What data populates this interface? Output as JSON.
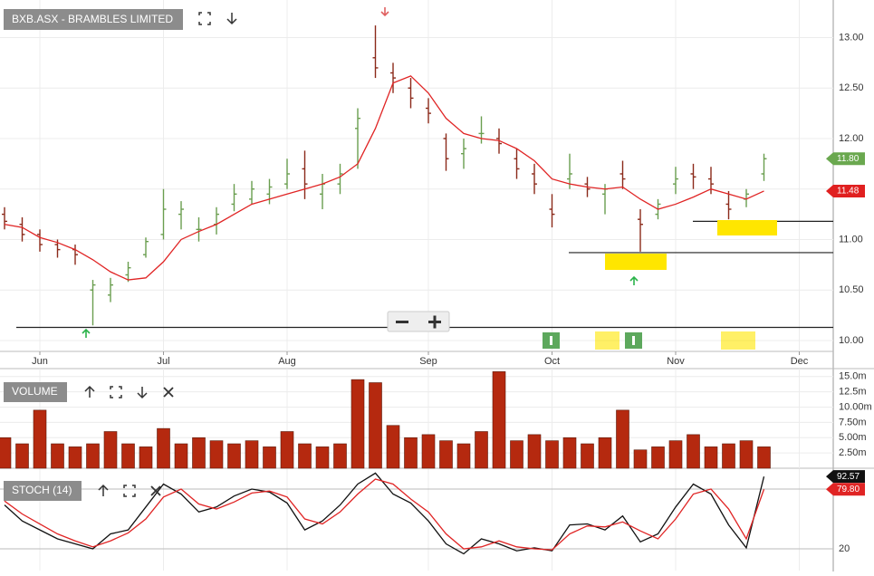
{
  "chart_data": [
    {
      "type": "ohlc",
      "title": "BXB.ASX - BRAMBLES LIMITED",
      "categories": [
        null,
        null,
        "Jun",
        null,
        null,
        null,
        null,
        null,
        null,
        "Jul",
        null,
        null,
        null,
        null,
        null,
        null,
        "Aug",
        null,
        null,
        null,
        null,
        null,
        null,
        null,
        "Sep",
        null,
        null,
        null,
        null,
        null,
        null,
        "Oct",
        null,
        null,
        null,
        null,
        null,
        null,
        "Nov",
        null,
        null,
        null,
        null,
        null,
        null,
        "Dec"
      ],
      "open": [
        11.25,
        11.15,
        11.05,
        10.95,
        10.9,
        10.5,
        10.45,
        10.65,
        10.85,
        11.05,
        11.25,
        11.1,
        11.15,
        11.35,
        11.4,
        11.45,
        11.55,
        11.7,
        11.45,
        11.55,
        12.1,
        12.8,
        12.65,
        12.5,
        12.3,
        12.0,
        11.85,
        12.05,
        12.0,
        11.8,
        11.65,
        11.3,
        11.6,
        11.55,
        11.45,
        11.65,
        11.2,
        11.25,
        11.55,
        11.65,
        11.6,
        11.35,
        11.4,
        11.65,
        null,
        null
      ],
      "high": [
        11.32,
        11.22,
        11.1,
        11.0,
        10.95,
        10.6,
        10.62,
        10.78,
        11.02,
        11.5,
        11.38,
        11.22,
        11.32,
        11.55,
        11.58,
        11.6,
        11.8,
        11.88,
        11.65,
        11.75,
        12.3,
        13.12,
        12.75,
        12.6,
        12.4,
        12.05,
        12.0,
        12.22,
        12.1,
        11.9,
        11.75,
        11.45,
        11.85,
        11.62,
        11.55,
        11.78,
        11.3,
        11.4,
        11.72,
        11.75,
        11.72,
        11.48,
        11.5,
        11.85,
        null,
        null
      ],
      "low": [
        11.1,
        10.98,
        10.88,
        10.82,
        10.75,
        10.15,
        10.38,
        10.58,
        10.82,
        11.0,
        11.1,
        10.98,
        11.05,
        11.28,
        11.35,
        11.35,
        11.5,
        11.4,
        11.3,
        11.45,
        11.7,
        12.6,
        12.45,
        12.3,
        12.15,
        11.68,
        11.7,
        11.95,
        11.85,
        11.6,
        11.45,
        11.12,
        11.5,
        11.42,
        11.25,
        11.5,
        10.88,
        11.2,
        11.45,
        11.5,
        11.45,
        11.2,
        11.32,
        11.58,
        null,
        null
      ],
      "close": [
        11.18,
        11.05,
        10.95,
        10.9,
        10.85,
        10.55,
        10.55,
        10.72,
        10.98,
        11.3,
        11.3,
        11.1,
        11.25,
        11.45,
        11.5,
        11.52,
        11.65,
        11.55,
        11.55,
        11.65,
        12.2,
        12.7,
        12.6,
        12.4,
        12.25,
        11.8,
        11.9,
        12.05,
        11.95,
        11.7,
        11.55,
        11.25,
        11.65,
        11.5,
        11.5,
        11.6,
        11.15,
        11.35,
        11.6,
        11.62,
        11.55,
        11.3,
        11.45,
        11.8,
        null,
        null
      ],
      "last_label": "11.80",
      "up_color": "#6a9e4f",
      "down_color": "#8b2a1a",
      "ma": {
        "color": "#e02424",
        "last_label": "11.48",
        "values": [
          11.15,
          11.12,
          11.02,
          10.97,
          10.9,
          10.8,
          10.68,
          10.6,
          10.62,
          10.78,
          11.0,
          11.08,
          11.15,
          11.25,
          11.35,
          11.4,
          11.45,
          11.5,
          11.55,
          11.62,
          11.75,
          12.1,
          12.55,
          12.62,
          12.45,
          12.2,
          12.05,
          12.0,
          11.98,
          11.9,
          11.78,
          11.6,
          11.55,
          11.52,
          11.5,
          11.52,
          11.4,
          11.3,
          11.35,
          11.42,
          11.5,
          11.45,
          11.4,
          11.48,
          null,
          null
        ]
      },
      "hlines": [
        10.13,
        10.87,
        11.18
      ],
      "ylim": [
        9.892,
        13.372
      ],
      "yticks": [
        {
          "value": 13,
          "label": "13.00"
        },
        {
          "value": 12.5,
          "label": "12.50"
        },
        {
          "value": 12,
          "label": "12.00"
        },
        {
          "value": 11.5,
          "label": "11.50"
        },
        {
          "value": 11,
          "label": "11.00"
        },
        {
          "value": 10.5,
          "label": "10.50"
        },
        {
          "value": 10,
          "label": "10.00"
        }
      ],
      "grid": true
    },
    {
      "type": "bar",
      "title": "VOLUME",
      "color": "#b5290f",
      "values": [
        5,
        4,
        9.5,
        4,
        3.5,
        4,
        6,
        4,
        3.5,
        6.5,
        4,
        5,
        4.5,
        4,
        4.5,
        3.5,
        6,
        4,
        3.5,
        4,
        14.5,
        14,
        7,
        5,
        5.5,
        4.5,
        4,
        6,
        15.8,
        4.5,
        5.5,
        4.5,
        5,
        4,
        5,
        9.5,
        3,
        3.5,
        4.5,
        5.5,
        3.5,
        4,
        4.5,
        3.5,
        null,
        null
      ],
      "ylim": [
        0,
        16.3
      ],
      "yticks": [
        {
          "value": 15,
          "label": "15.0m"
        },
        {
          "value": 12.5,
          "label": "12.5m"
        },
        {
          "value": 10,
          "label": "10.00m"
        },
        {
          "value": 7.5,
          "label": "7.50m"
        },
        {
          "value": 5,
          "label": "5.00m"
        },
        {
          "value": 2.5,
          "label": "2.50m"
        }
      ],
      "grid": true
    },
    {
      "type": "line",
      "title": "STOCH (14)",
      "series": [
        {
          "color": "#111111",
          "last_label": "92.57",
          "values": [
            64,
            48,
            39,
            30,
            25,
            20,
            35,
            39,
            62,
            85,
            75,
            57,
            62,
            73,
            80,
            77,
            66,
            39,
            48,
            64,
            85,
            96,
            75,
            66,
            48,
            25,
            15,
            30,
            25,
            18,
            21,
            18,
            44,
            45,
            39,
            53,
            27,
            35,
            62,
            85,
            75,
            44,
            21,
            92.57,
            null,
            null
          ]
        },
        {
          "color": "#e02424",
          "last_label": "79.80",
          "values": [
            68,
            55,
            45,
            35,
            28,
            22,
            28,
            36,
            50,
            72,
            80,
            65,
            60,
            67,
            76,
            78,
            72,
            50,
            45,
            57,
            75,
            90,
            85,
            70,
            57,
            35,
            20,
            22,
            28,
            22,
            20,
            19,
            35,
            43,
            42,
            47,
            38,
            30,
            50,
            75,
            80,
            60,
            30,
            79.8,
            null,
            null
          ]
        }
      ],
      "ylim": [
        -1.8,
        100
      ],
      "yticks": [
        20
      ],
      "levels": [
        80
      ],
      "grid": true
    }
  ]
}
